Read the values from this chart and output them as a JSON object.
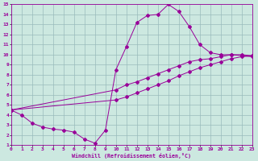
{
  "xlabel": "Windchill (Refroidissement éolien,°C)",
  "ylabel": "",
  "xlim": [
    0,
    23
  ],
  "ylim": [
    1,
    15
  ],
  "xticks": [
    0,
    1,
    2,
    3,
    4,
    5,
    6,
    7,
    8,
    9,
    10,
    11,
    12,
    13,
    14,
    15,
    16,
    17,
    18,
    19,
    20,
    21,
    22,
    23
  ],
  "yticks": [
    1,
    2,
    3,
    4,
    5,
    6,
    7,
    8,
    9,
    10,
    11,
    12,
    13,
    14,
    15
  ],
  "background_color": "#cce8e0",
  "line_color": "#990099",
  "grid_color": "#99bbbb",
  "line1_x": [
    0,
    1,
    2,
    3,
    4,
    5,
    6,
    7,
    8,
    9,
    10,
    11,
    12,
    13,
    14,
    15,
    16,
    17,
    18,
    19,
    20,
    21,
    22,
    23
  ],
  "line1_y": [
    4.5,
    4.0,
    3.2,
    2.8,
    2.6,
    2.5,
    2.3,
    1.6,
    1.2,
    2.5,
    8.5,
    10.8,
    13.2,
    13.9,
    14.0,
    15.0,
    14.3,
    12.8,
    11.0,
    10.2,
    10.0,
    10.0,
    9.9,
    9.8
  ],
  "line2_x": [
    0,
    10,
    11,
    12,
    13,
    14,
    15,
    16,
    17,
    18,
    19,
    20,
    21,
    22,
    23
  ],
  "line2_y": [
    4.5,
    6.5,
    7.0,
    7.3,
    7.7,
    8.1,
    8.5,
    8.9,
    9.3,
    9.5,
    9.6,
    9.8,
    10.0,
    10.0,
    9.9
  ],
  "line3_x": [
    0,
    10,
    11,
    12,
    13,
    14,
    15,
    16,
    17,
    18,
    19,
    20,
    21,
    22,
    23
  ],
  "line3_y": [
    4.5,
    5.5,
    5.8,
    6.2,
    6.6,
    7.0,
    7.4,
    7.9,
    8.3,
    8.7,
    9.0,
    9.3,
    9.6,
    9.8,
    9.9
  ]
}
